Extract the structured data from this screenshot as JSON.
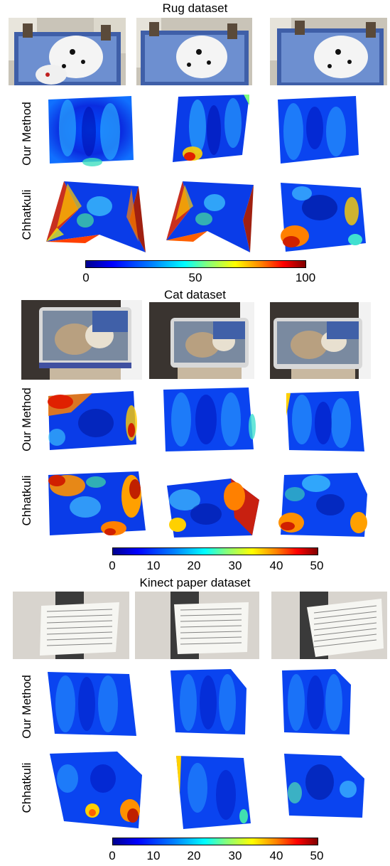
{
  "figure": {
    "rug": {
      "title": "Rug dataset",
      "row_our": "Our Method",
      "row_chhatkuli": "Chhatkuli",
      "colorbar_ticks": [
        "0",
        "50",
        "100"
      ]
    },
    "cat": {
      "title": "Cat dataset",
      "row_our": "Our Method",
      "row_chhatkuli": "Chhatkuli",
      "colorbar_ticks": [
        "0",
        "10",
        "20",
        "30",
        "40",
        "50"
      ]
    },
    "kinect": {
      "title": "Kinect paper dataset",
      "row_our": "Our Method",
      "row_chhatkuli": "Chhatkuli",
      "colorbar_ticks": [
        "0",
        "10",
        "20",
        "30",
        "40",
        "50"
      ]
    }
  },
  "colors": {
    "low": "#00008f",
    "mid": "#00ffff",
    "high": "#800000"
  }
}
